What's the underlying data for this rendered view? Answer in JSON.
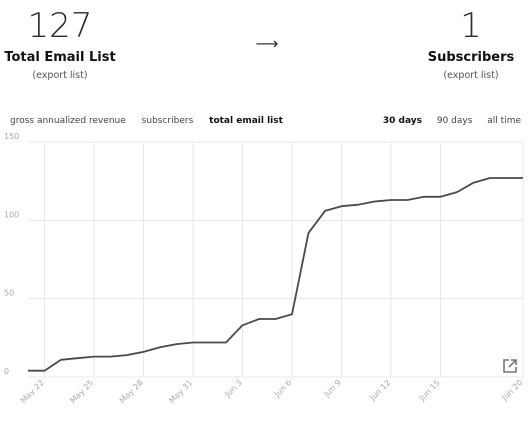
{
  "stats": {
    "left": {
      "value": "127",
      "label": "Total Email List",
      "export": "(export list)"
    },
    "arrow": "⟶",
    "right": {
      "value": "1",
      "label": "Subscribers",
      "export": "(export list)"
    }
  },
  "filters": [
    "gross annualized revenue",
    "subscribers",
    "total email list"
  ],
  "active_filter": "total email list",
  "ranges": [
    "30 days",
    "90 days",
    "all time"
  ],
  "active_range": "30 days",
  "icons": {
    "external": "external-link-icon"
  },
  "colors": {
    "line": "#4a4a4a",
    "grid": "#e8e8e8",
    "tick": "#aaaaaa"
  },
  "chart_data": {
    "type": "line",
    "title": "",
    "xlabel": "",
    "ylabel": "",
    "ylim": [
      0,
      150
    ],
    "yticks": [
      0,
      50,
      100,
      150
    ],
    "xticks": [
      "May 22",
      "May 25",
      "May 28",
      "May 31",
      "Jun 3",
      "Jun 6",
      "Jun 9",
      "Jun 12",
      "Jun 15",
      "Jun 20"
    ],
    "grid": true,
    "series": [
      {
        "x": [
          "May 21",
          "May 22",
          "May 23",
          "May 24",
          "May 25",
          "May 26",
          "May 27",
          "May 28",
          "May 29",
          "May 30",
          "May 31",
          "Jun 1",
          "Jun 2",
          "Jun 3",
          "Jun 4",
          "Jun 5",
          "Jun 6",
          "Jun 7",
          "Jun 8",
          "Jun 9",
          "Jun 10",
          "Jun 11",
          "Jun 12",
          "Jun 13",
          "Jun 14",
          "Jun 15",
          "Jun 16",
          "Jun 17",
          "Jun 18",
          "Jun 19",
          "Jun 20"
        ],
        "values": [
          4,
          4,
          11,
          12,
          13,
          13,
          14,
          16,
          19,
          21,
          22,
          22,
          22,
          33,
          37,
          37,
          40,
          92,
          106,
          109,
          110,
          112,
          113,
          113,
          115,
          115,
          118,
          124,
          127,
          127,
          127
        ]
      }
    ]
  }
}
